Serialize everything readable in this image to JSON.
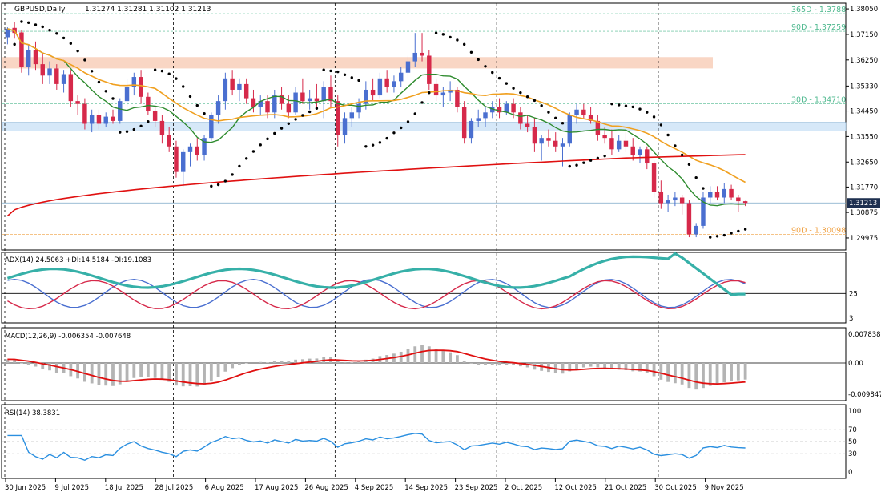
{
  "chart_data": {
    "type": "candlestick",
    "symbol": "GBPUSD,Daily",
    "ohlc_header": "1.31274 1.31281 1.31102 1.31213",
    "last_price": "1.31213",
    "price_axis": {
      "range": [
        1.2955,
        1.3825
      ],
      "ticks": [
        "1.38050",
        "1.37150",
        "1.36250",
        "1.35330",
        "1.34450",
        "1.33550",
        "1.32650",
        "1.31770",
        "1.30875",
        "1.29975"
      ]
    },
    "date_labels": [
      "30 Jun 2025",
      "9 Jul 2025",
      "18 Jul 2025",
      "28 Jul 2025",
      "6 Aug 2025",
      "17 Aug 2025",
      "26 Aug 2025",
      "4 Sep 2025",
      "14 Sep 2025",
      "23 Sep 2025",
      "2 Oct 2025",
      "12 Oct 2025",
      "21 Oct 2025",
      "30 Oct 2025",
      "9 Nov 2025"
    ],
    "levels": [
      {
        "label": "365D - 1.3788",
        "value": 1.3788,
        "color": "#4fb98f"
      },
      {
        "label": "90D - 1.37259",
        "value": 1.37259,
        "color": "#4fb98f"
      },
      {
        "label": "30D - 1.34710",
        "value": 1.3471,
        "color": "#4fb98f"
      },
      {
        "label": "90D - 1.30098",
        "value": 1.30098,
        "color": "#f0a040"
      }
    ],
    "zones": [
      {
        "from": 1.3595,
        "to": 1.3635,
        "color": "#f9d6c4"
      },
      {
        "from": 1.3375,
        "to": 1.3405,
        "color": "#d6e8f8"
      }
    ],
    "candles": [
      [
        1.3705,
        1.374,
        1.368,
        1.3735
      ],
      [
        1.3738,
        1.376,
        1.37,
        1.372
      ],
      [
        1.3722,
        1.373,
        1.358,
        1.36
      ],
      [
        1.36,
        1.368,
        1.357,
        1.366
      ],
      [
        1.366,
        1.369,
        1.359,
        1.361
      ],
      [
        1.361,
        1.365,
        1.354,
        1.357
      ],
      [
        1.357,
        1.362,
        1.354,
        1.3595
      ],
      [
        1.3595,
        1.361,
        1.352,
        1.354
      ],
      [
        1.354,
        1.359,
        1.351,
        1.3575
      ],
      [
        1.3575,
        1.359,
        1.346,
        1.348
      ],
      [
        1.348,
        1.35,
        1.343,
        1.347
      ],
      [
        1.347,
        1.349,
        1.338,
        1.34
      ],
      [
        1.34,
        1.345,
        1.337,
        1.343
      ],
      [
        1.343,
        1.345,
        1.338,
        1.34
      ],
      [
        1.34,
        1.344,
        1.339,
        1.3425
      ],
      [
        1.3425,
        1.345,
        1.34,
        1.341
      ],
      [
        1.341,
        1.349,
        1.34,
        1.348
      ],
      [
        1.348,
        1.356,
        1.346,
        1.353
      ],
      [
        1.353,
        1.358,
        1.35,
        1.3565
      ],
      [
        1.3565,
        1.359,
        1.347,
        1.3495
      ],
      [
        1.3495,
        1.351,
        1.343,
        1.3445
      ],
      [
        1.3445,
        1.3465,
        1.339,
        1.341
      ],
      [
        1.341,
        1.343,
        1.333,
        1.336
      ],
      [
        1.336,
        1.339,
        1.33,
        1.332
      ],
      [
        1.332,
        1.334,
        1.321,
        1.323
      ],
      [
        1.323,
        1.331,
        1.318,
        1.33
      ],
      [
        1.33,
        1.333,
        1.325,
        1.332
      ],
      [
        1.332,
        1.335,
        1.327,
        1.329
      ],
      [
        1.329,
        1.336,
        1.327,
        1.335
      ],
      [
        1.335,
        1.344,
        1.334,
        1.343
      ],
      [
        1.343,
        1.35,
        1.34,
        1.348
      ],
      [
        1.348,
        1.358,
        1.345,
        1.356
      ],
      [
        1.356,
        1.359,
        1.35,
        1.352
      ],
      [
        1.352,
        1.356,
        1.348,
        1.354
      ],
      [
        1.354,
        1.356,
        1.347,
        1.349
      ],
      [
        1.349,
        1.352,
        1.344,
        1.346
      ],
      [
        1.346,
        1.35,
        1.343,
        1.348
      ],
      [
        1.348,
        1.35,
        1.342,
        1.344
      ],
      [
        1.344,
        1.352,
        1.342,
        1.35
      ],
      [
        1.35,
        1.353,
        1.345,
        1.347
      ],
      [
        1.347,
        1.35,
        1.342,
        1.344
      ],
      [
        1.344,
        1.353,
        1.343,
        1.351
      ],
      [
        1.351,
        1.356,
        1.347,
        1.348
      ],
      [
        1.348,
        1.352,
        1.345,
        1.349
      ],
      [
        1.349,
        1.354,
        1.346,
        1.348
      ],
      [
        1.348,
        1.355,
        1.342,
        1.353
      ],
      [
        1.353,
        1.357,
        1.346,
        1.348
      ],
      [
        1.348,
        1.35,
        1.332,
        1.336
      ],
      [
        1.336,
        1.344,
        1.333,
        1.342
      ],
      [
        1.342,
        1.346,
        1.339,
        1.344
      ],
      [
        1.344,
        1.349,
        1.342,
        1.347
      ],
      [
        1.347,
        1.355,
        1.345,
        1.352
      ],
      [
        1.352,
        1.356,
        1.348,
        1.35
      ],
      [
        1.35,
        1.358,
        1.349,
        1.356
      ],
      [
        1.356,
        1.359,
        1.351,
        1.353
      ],
      [
        1.353,
        1.357,
        1.351,
        1.355
      ],
      [
        1.355,
        1.36,
        1.353,
        1.358
      ],
      [
        1.358,
        1.364,
        1.356,
        1.362
      ],
      [
        1.362,
        1.372,
        1.36,
        1.365
      ],
      [
        1.365,
        1.372,
        1.362,
        1.364
      ],
      [
        1.364,
        1.366,
        1.352,
        1.354
      ],
      [
        1.354,
        1.356,
        1.348,
        1.35
      ],
      [
        1.35,
        1.353,
        1.346,
        1.351
      ],
      [
        1.351,
        1.355,
        1.348,
        1.352
      ],
      [
        1.352,
        1.353,
        1.344,
        1.346
      ],
      [
        1.346,
        1.348,
        1.333,
        1.335
      ],
      [
        1.335,
        1.342,
        1.333,
        1.341
      ],
      [
        1.341,
        1.345,
        1.339,
        1.342
      ],
      [
        1.342,
        1.346,
        1.339,
        1.344
      ],
      [
        1.344,
        1.348,
        1.342,
        1.346
      ],
      [
        1.346,
        1.349,
        1.342,
        1.344
      ],
      [
        1.344,
        1.348,
        1.343,
        1.347
      ],
      [
        1.347,
        1.349,
        1.342,
        1.344
      ],
      [
        1.344,
        1.346,
        1.338,
        1.34
      ],
      [
        1.34,
        1.343,
        1.337,
        1.339
      ],
      [
        1.339,
        1.342,
        1.33,
        1.333
      ],
      [
        1.333,
        1.336,
        1.327,
        1.335
      ],
      [
        1.335,
        1.338,
        1.332,
        1.334
      ],
      [
        1.334,
        1.337,
        1.33,
        1.332
      ],
      [
        1.332,
        1.335,
        1.325,
        1.333
      ],
      [
        1.333,
        1.344,
        1.332,
        1.343
      ],
      [
        1.343,
        1.347,
        1.34,
        1.345
      ],
      [
        1.345,
        1.347,
        1.342,
        1.343
      ],
      [
        1.343,
        1.346,
        1.34,
        1.341
      ],
      [
        1.341,
        1.343,
        1.334,
        1.336
      ],
      [
        1.336,
        1.339,
        1.333,
        1.335
      ],
      [
        1.335,
        1.338,
        1.329,
        1.331
      ],
      [
        1.331,
        1.336,
        1.33,
        1.334
      ],
      [
        1.334,
        1.337,
        1.33,
        1.332
      ],
      [
        1.332,
        1.335,
        1.327,
        1.329
      ],
      [
        1.329,
        1.332,
        1.326,
        1.331
      ],
      [
        1.331,
        1.332,
        1.324,
        1.326
      ],
      [
        1.326,
        1.327,
        1.314,
        1.316
      ],
      [
        1.316,
        1.32,
        1.31,
        1.312
      ],
      [
        1.312,
        1.315,
        1.309,
        1.313
      ],
      [
        1.313,
        1.316,
        1.311,
        1.314
      ],
      [
        1.314,
        1.315,
        1.308,
        1.312
      ],
      [
        1.312,
        1.313,
        1.3,
        1.301
      ],
      [
        1.301,
        1.305,
        1.3,
        1.304
      ],
      [
        1.304,
        1.316,
        1.303,
        1.314
      ],
      [
        1.314,
        1.318,
        1.312,
        1.316
      ],
      [
        1.316,
        1.318,
        1.313,
        1.314
      ],
      [
        1.314,
        1.319,
        1.312,
        1.317
      ],
      [
        1.317,
        1.3185,
        1.313,
        1.314
      ],
      [
        1.314,
        1.315,
        1.309,
        1.3127
      ],
      [
        1.3127,
        1.3128,
        1.311,
        1.3121
      ]
    ],
    "indicators": [
      {
        "name": "ADX",
        "label": "ADX(14) 24.5063 +DI:14.5184 -DI:19.1083",
        "level_label": "25",
        "bottom_label": "3"
      },
      {
        "name": "MACD",
        "label": "MACD(12,26,9) -0.006354 -0.007648",
        "ticks": [
          "0.007838",
          "0.00",
          "-0.009847"
        ]
      },
      {
        "name": "RSI",
        "label": "RSI(14) 38.3831",
        "ticks": [
          "100",
          "70",
          "50",
          "30",
          "0"
        ]
      }
    ],
    "grid": false,
    "legend": "top-left"
  },
  "colors": {
    "bull": "#4a6fd0",
    "bear": "#d6294a",
    "ma_fast": "#2e8b2e",
    "ma_mid": "#f0a020",
    "ma_slow": "#e01010",
    "adx": "#36b0a8",
    "plus_di": "#4a6fd0",
    "minus_di": "#d6294a",
    "macd_hist": "#b4b4b4",
    "macd_signal": "#e01010",
    "rsi": "#2a8fe0"
  }
}
